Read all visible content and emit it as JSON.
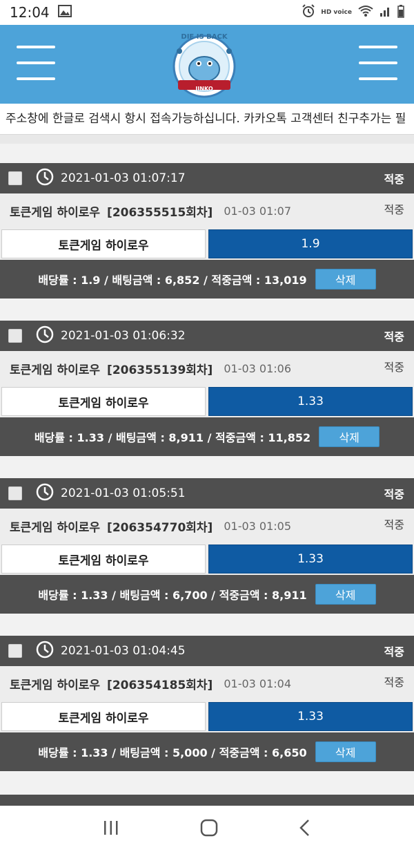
{
  "status_bar": {
    "time": "12:04",
    "network": "HD voice"
  },
  "header": {
    "logo_text_top": "DIE IS BACK",
    "logo_text_band": "JINKO"
  },
  "notice": {
    "text": "주소창에 한글로 검색시 항시 접속가능하십니다. 카카오톡 고객센터 친구추가는 필"
  },
  "labels": {
    "delete": "삭제"
  },
  "cards": [
    {
      "datetime": "2021-01-03 01:07:17",
      "status": "적중",
      "game": "토큰게임 하이로우",
      "round": "[206355515회차]",
      "date": "01-03 01:07",
      "sub_status": "적중",
      "pick": "토큰게임 하이로우",
      "odds": "1.9",
      "summary": "배당률 : 1.9 / 배팅금액 : 6,852 / 적중금액 : 13,019"
    },
    {
      "datetime": "2021-01-03 01:06:32",
      "status": "적중",
      "game": "토큰게임 하이로우",
      "round": "[206355139회차]",
      "date": "01-03 01:06",
      "sub_status": "적중",
      "pick": "토큰게임 하이로우",
      "odds": "1.33",
      "summary": "배당률 : 1.33 / 배팅금액 : 8,911 / 적중금액 : 11,852"
    },
    {
      "datetime": "2021-01-03 01:05:51",
      "status": "적중",
      "game": "토큰게임 하이로우",
      "round": "[206354770회차]",
      "date": "01-03 01:05",
      "sub_status": "적중",
      "pick": "토큰게임 하이로우",
      "odds": "1.33",
      "summary": "배당률 : 1.33 / 배팅금액 : 6,700 / 적중금액 : 8,911"
    },
    {
      "datetime": "2021-01-03 01:04:45",
      "status": "적중",
      "game": "토큰게임 하이로우",
      "round": "[206354185회차]",
      "date": "01-03 01:04",
      "sub_status": "적중",
      "pick": "토큰게임 하이로우",
      "odds": "1.33",
      "summary": "배당률 : 1.33 / 배팅금액 : 5,000 / 적중금액 : 6,650"
    }
  ]
}
